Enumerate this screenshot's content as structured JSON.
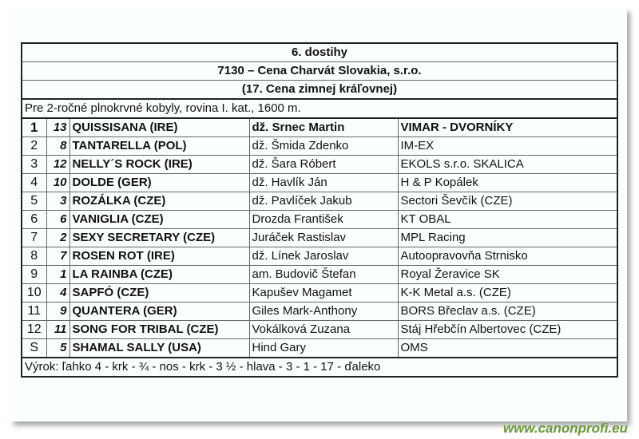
{
  "race": {
    "number": "6. dostihy",
    "title": "7130 – Cena Charvát Slovakia, s.r.o.",
    "subtitle": "(17. Cena zimnej kráľovnej)",
    "conditions": "Pre 2-ročné plnokrvné kobyly, rovina I. kat., 1600 m.",
    "results": [
      {
        "pos": "1",
        "num": "13",
        "horse": "QUISSISANA (IRE)",
        "jockey": "dž. Srnec Martin",
        "owner": "VIMAR - DVORNÍKY"
      },
      {
        "pos": "2",
        "num": "8",
        "horse": "TANTARELLA (POL)",
        "jockey": "dž. Šmida Zdenko",
        "owner": "IM-EX"
      },
      {
        "pos": "3",
        "num": "12",
        "horse": "NELLY´S ROCK (IRE)",
        "jockey": "dž. Šara Róbert",
        "owner": "EKOLS s.r.o. SKALICA"
      },
      {
        "pos": "4",
        "num": "10",
        "horse": "DOLDE (GER)",
        "jockey": "dž. Havlík Ján",
        "owner": "H & P Kopálek"
      },
      {
        "pos": "5",
        "num": "3",
        "horse": "ROZÁLKA (CZE)",
        "jockey": "dž. Pavlíček Jakub",
        "owner": "Sectori Ševčík (CZE)"
      },
      {
        "pos": "6",
        "num": "6",
        "horse": "VANIGLIA (CZE)",
        "jockey": "Drozda František",
        "owner": "KT OBAL"
      },
      {
        "pos": "7",
        "num": "2",
        "horse": "SEXY SECRETARY (CZE)",
        "jockey": "Juráček Rastislav",
        "owner": "MPL Racing"
      },
      {
        "pos": "8",
        "num": "7",
        "horse": "ROSEN ROT (IRE)",
        "jockey": "dž. Línek Jaroslav",
        "owner": "Autoopravovňa Strnisko"
      },
      {
        "pos": "9",
        "num": "1",
        "horse": "LA RAINBA (CZE)",
        "jockey": "am. Budovič Štefan",
        "owner": "Royal Žeravice SK"
      },
      {
        "pos": "10",
        "num": "4",
        "horse": "SAPFÓ (CZE)",
        "jockey": "Kapušev Magamet",
        "owner": "K-K Metal a.s. (CZE)"
      },
      {
        "pos": "11",
        "num": "9",
        "horse": "QUANTERA (GER)",
        "jockey": "Giles Mark-Anthony",
        "owner": "BORS Břeclav a.s. (CZE)"
      },
      {
        "pos": "12",
        "num": "11",
        "horse": "SONG FOR TRIBAL (CZE)",
        "jockey": "Vokálková Zuzana",
        "owner": "Stáj Hřebčín Albertovec (CZE)"
      },
      {
        "pos": "S",
        "num": "5",
        "horse": "SHAMAL SALLY (USA)",
        "jockey": "Hind Gary",
        "owner": "OMS"
      }
    ],
    "verdict": "Výrok: ľahko 4 - krk - ¾ - nos - krk - 3 ½ - hlava - 3 - 1 - 17 - ďaleko"
  },
  "watermark": "www.canonprofi.eu"
}
